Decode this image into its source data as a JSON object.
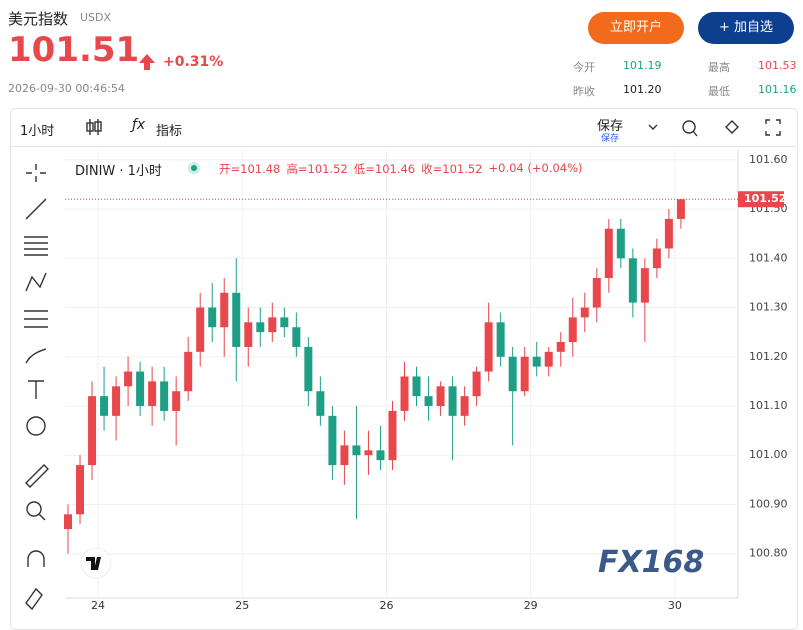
{
  "header": {
    "title": "美元指数",
    "symbol": "USDX",
    "price": "101.51",
    "change": "+0.31%",
    "datetime": "2026-09-30 00:46:54",
    "buttons": [
      "立即开户",
      "+ 加自选"
    ],
    "stats": [
      [
        "今开",
        "101.19"
      ],
      [
        "最高",
        "101.53"
      ],
      [
        "昨收",
        "101.20"
      ],
      [
        "最低",
        "101.16"
      ]
    ]
  },
  "toolbar": {
    "interval": "1小时",
    "indicators": "指标",
    "save": "保存",
    "save_sub": "保存"
  },
  "watermark": "FX168",
  "chart_data": {
    "type": "candlestick",
    "title": "DINIW · 1小时",
    "legend": [
      "开=101.48",
      "高=101.52",
      "低=101.46",
      "收=101.52",
      "+0.04 (+0.04%)"
    ],
    "up_color": "#e8474c",
    "down_color": "#1f9e86",
    "x": [
      0,
      2,
      4,
      6,
      8,
      10,
      12,
      14,
      16,
      18,
      20,
      22,
      24,
      26,
      28,
      30,
      32,
      34,
      36,
      38,
      40,
      42,
      44,
      46,
      48,
      50,
      52,
      54,
      56,
      58,
      60,
      62,
      64,
      66,
      68,
      70,
      72,
      74,
      76,
      78,
      80,
      82,
      84,
      86,
      88,
      90,
      92,
      94,
      96,
      98,
      100,
      102
    ],
    "open": [
      100.85,
      100.88,
      100.98,
      101.12,
      101.08,
      101.14,
      101.17,
      101.1,
      101.15,
      101.09,
      101.13,
      101.21,
      101.3,
      101.26,
      101.33,
      101.22,
      101.27,
      101.25,
      101.28,
      101.26,
      101.22,
      101.13,
      101.08,
      100.98,
      101.02,
      101.0,
      101.01,
      100.99,
      101.09,
      101.16,
      101.12,
      101.1,
      101.14,
      101.08,
      101.12,
      101.17,
      101.27,
      101.2,
      101.13,
      101.2,
      101.18,
      101.21,
      101.23,
      101.28,
      101.3,
      101.36,
      101.46,
      101.4,
      101.31,
      101.38,
      101.42,
      101.48
    ],
    "high": [
      100.9,
      101.0,
      101.15,
      101.18,
      101.16,
      101.2,
      101.19,
      101.18,
      101.18,
      101.16,
      101.24,
      101.33,
      101.35,
      101.36,
      101.4,
      101.3,
      101.3,
      101.31,
      101.3,
      101.29,
      101.24,
      101.16,
      101.1,
      101.05,
      101.1,
      101.05,
      101.06,
      101.11,
      101.19,
      101.18,
      101.16,
      101.15,
      101.16,
      101.14,
      101.18,
      101.31,
      101.29,
      101.22,
      101.22,
      101.23,
      101.22,
      101.25,
      101.32,
      101.33,
      101.38,
      101.48,
      101.48,
      101.42,
      101.4,
      101.44,
      101.5,
      101.52
    ],
    "low": [
      100.8,
      100.86,
      100.95,
      101.05,
      101.03,
      101.1,
      101.08,
      101.06,
      101.07,
      101.02,
      101.11,
      101.18,
      101.23,
      101.2,
      101.15,
      101.18,
      101.22,
      101.23,
      101.24,
      101.2,
      101.1,
      101.06,
      100.95,
      100.94,
      100.87,
      100.96,
      100.97,
      100.97,
      101.07,
      101.1,
      101.07,
      101.08,
      100.99,
      101.06,
      101.1,
      101.15,
      101.18,
      101.02,
      101.12,
      101.16,
      101.16,
      101.18,
      101.2,
      101.25,
      101.27,
      101.33,
      101.38,
      101.28,
      101.23,
      101.36,
      101.4,
      101.46
    ],
    "close": [
      100.88,
      100.98,
      101.12,
      101.08,
      101.14,
      101.17,
      101.1,
      101.15,
      101.09,
      101.13,
      101.21,
      101.3,
      101.26,
      101.33,
      101.22,
      101.27,
      101.25,
      101.28,
      101.26,
      101.22,
      101.13,
      101.08,
      100.98,
      101.02,
      101.0,
      101.01,
      100.99,
      101.09,
      101.16,
      101.12,
      101.1,
      101.14,
      101.08,
      101.12,
      101.17,
      101.27,
      101.2,
      101.13,
      101.2,
      101.18,
      101.21,
      101.23,
      101.28,
      101.3,
      101.36,
      101.46,
      101.4,
      101.31,
      101.38,
      101.42,
      101.48,
      101.52
    ],
    "xlim": [
      -0.5,
      111.5
    ],
    "xticks": [
      {
        "value": 5,
        "label": "24"
      },
      {
        "value": 29,
        "label": "25"
      },
      {
        "value": 53,
        "label": "26"
      },
      {
        "value": 77,
        "label": "29"
      },
      {
        "value": 101,
        "label": "30"
      }
    ],
    "ylim": [
      100.71,
      101.62
    ],
    "yticks": [
      {
        "value": 100.8,
        "label": "100.80"
      },
      {
        "value": 100.9,
        "label": "100.90"
      },
      {
        "value": 101,
        "label": "101.00"
      },
      {
        "value": 101.1,
        "label": "101.10"
      },
      {
        "value": 101.2,
        "label": "101.20"
      },
      {
        "value": 101.3,
        "label": "101.30"
      },
      {
        "value": 101.4,
        "label": "101.40"
      },
      {
        "value": 101.5,
        "label": "101.50"
      },
      {
        "value": 101.6,
        "label": "101.60"
      }
    ],
    "last_price": {
      "value": 101.52,
      "label": "101.52"
    },
    "grid": true
  }
}
